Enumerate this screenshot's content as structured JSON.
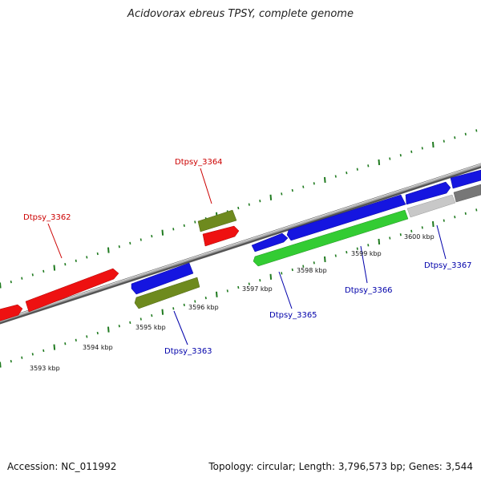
{
  "title": "Acidovorax ebreus TPSY, complete genome",
  "footer": {
    "accession": "Accession: NC_011992",
    "summary": "Topology: circular; Length: 3,796,573 bp; Genes: 3,544"
  },
  "colors": {
    "backbone": "#8c8c8c",
    "tick": "#1f7a1f",
    "label_forward": "#cc0000",
    "label_reverse": "#0000aa",
    "red": "#ee1111",
    "blue": "#1515e0",
    "olive": "#6e8a1e",
    "green": "#33cc33",
    "lightgray": "#c8c8c8",
    "darkgray": "#777777"
  },
  "scale": {
    "unit": "kbp",
    "labels": [
      "3593 kbp",
      "3594 kbp",
      "3595 kbp",
      "3596 kbp",
      "3597 kbp",
      "3598 kbp",
      "3599 kbp",
      "3600 kbp"
    ]
  },
  "features": [
    {
      "name": "Dtpsy_3362",
      "strand": "forward",
      "color": "red"
    },
    {
      "name": "Dtpsy_3364",
      "strand": "forward",
      "color": "red"
    },
    {
      "name": "Dtpsy_3363",
      "strand": "reverse",
      "color": "blue"
    },
    {
      "name": "Dtpsy_3365",
      "strand": "reverse",
      "color": "blue"
    },
    {
      "name": "Dtpsy_3366",
      "strand": "reverse",
      "color": "blue"
    },
    {
      "name": "Dtpsy_3367",
      "strand": "reverse",
      "color": "blue"
    }
  ]
}
